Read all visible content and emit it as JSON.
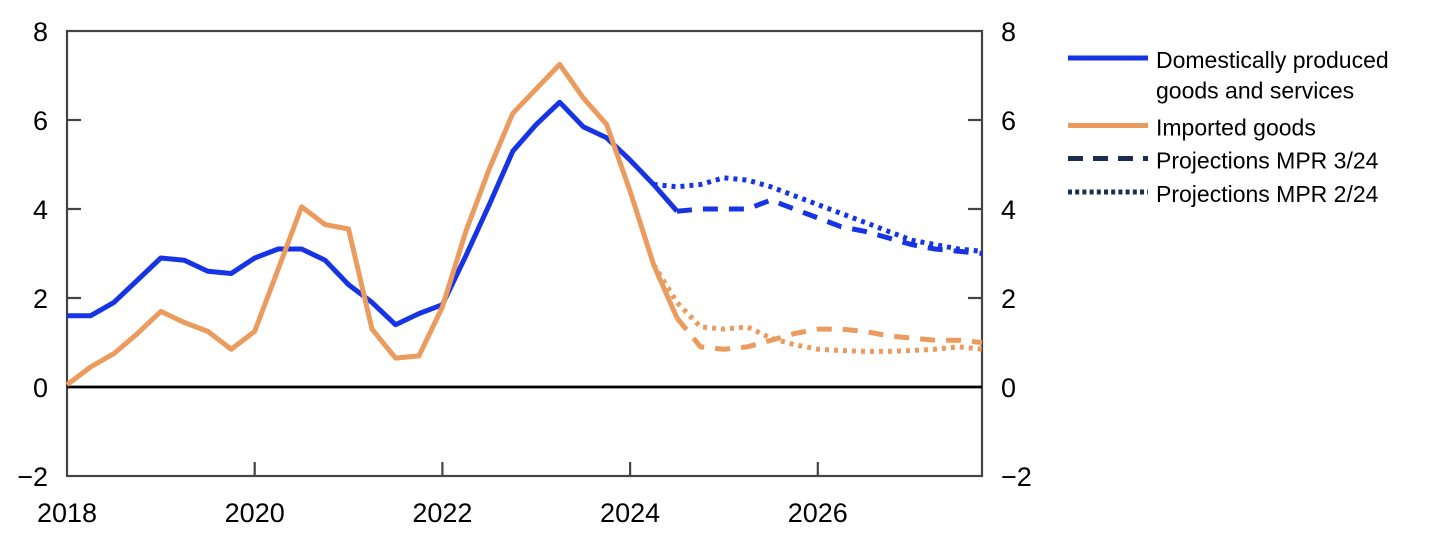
{
  "chart_data": {
    "type": "line",
    "title": "",
    "x_step": 0.25,
    "x_axis": {
      "ticks": [
        2018,
        2020,
        2022,
        2024,
        2026
      ],
      "tick_labels": [
        "2018",
        "2020",
        "2022",
        "2024",
        "2026"
      ],
      "range": [
        2018,
        2027.75
      ]
    },
    "y_axis": {
      "ticks": [
        8,
        6,
        4,
        2,
        0,
        -2
      ],
      "tick_labels": [
        "8",
        "6",
        "4",
        "2",
        "0",
        "−2"
      ],
      "range": [
        -2,
        8
      ],
      "sides": [
        "left",
        "right"
      ]
    },
    "zero_line": true,
    "grid": false,
    "colors": {
      "domestic": "#1634e4",
      "imported": "#eb9b5e",
      "projection_legend": "#1e2b52",
      "axis": "#444444",
      "zero_line": "#000000"
    },
    "series": [
      {
        "id": "domestic",
        "name": "Domestically produced goods and services",
        "style": "solid",
        "color": "#1634e4",
        "x_start": 2018.0,
        "values": [
          1.6,
          1.6,
          1.9,
          2.4,
          2.9,
          2.85,
          2.6,
          2.55,
          2.9,
          3.1,
          3.1,
          2.85,
          2.3,
          1.9,
          1.4,
          1.65,
          1.85,
          2.95,
          4.1,
          5.3,
          5.9,
          6.4,
          5.85,
          5.6,
          5.1,
          4.55,
          3.95
        ]
      },
      {
        "id": "imported",
        "name": "Imported goods",
        "style": "solid",
        "color": "#eb9b5e",
        "x_start": 2018.0,
        "values": [
          0.05,
          0.45,
          0.75,
          1.2,
          1.7,
          1.45,
          1.25,
          0.85,
          1.25,
          2.65,
          4.05,
          3.65,
          3.55,
          1.3,
          0.65,
          0.7,
          1.8,
          3.5,
          4.9,
          6.15,
          6.7,
          7.25,
          6.5,
          5.9,
          4.4,
          2.75,
          1.55
        ]
      },
      {
        "id": "domestic-mpr-3-24",
        "name": "Projections MPR 3/24",
        "of": "Domestically produced goods and services",
        "style": "dashed",
        "color": "#1634e4",
        "x_start": 2024.5,
        "values": [
          3.95,
          4.0,
          4.0,
          4.0,
          4.2,
          4.0,
          3.8,
          3.6,
          3.5,
          3.35,
          3.2,
          3.1,
          3.05,
          3.0
        ]
      },
      {
        "id": "domestic-mpr-2-24",
        "name": "Projections MPR 2/24",
        "of": "Domestically produced goods and services",
        "style": "dotted",
        "color": "#1634e4",
        "x_start": 2024.25,
        "values": [
          4.55,
          4.5,
          4.55,
          4.7,
          4.65,
          4.5,
          4.3,
          4.1,
          3.9,
          3.7,
          3.5,
          3.3,
          3.2,
          3.1,
          3.05
        ]
      },
      {
        "id": "imported-mpr-3-24",
        "name": "Projections MPR 3/24",
        "of": "Imported goods",
        "style": "dashed",
        "color": "#eb9b5e",
        "x_start": 2024.5,
        "values": [
          1.55,
          0.9,
          0.85,
          0.9,
          1.05,
          1.2,
          1.3,
          1.3,
          1.25,
          1.15,
          1.1,
          1.05,
          1.05,
          1.0
        ]
      },
      {
        "id": "imported-mpr-2-24",
        "name": "Projections MPR 2/24",
        "of": "Imported goods",
        "style": "dotted",
        "color": "#eb9b5e",
        "x_start": 2024.25,
        "values": [
          2.75,
          1.9,
          1.35,
          1.3,
          1.35,
          1.1,
          0.95,
          0.85,
          0.82,
          0.8,
          0.8,
          0.82,
          0.85,
          0.9,
          0.85
        ]
      }
    ],
    "legend": {
      "position": "right",
      "entries": [
        {
          "id": "domestic",
          "lines": [
            "Domestically produced",
            "goods and services"
          ],
          "style": "solid",
          "color": "#1634e4"
        },
        {
          "id": "imported",
          "lines": [
            "Imported goods"
          ],
          "style": "solid",
          "color": "#eb9b5e"
        },
        {
          "id": "mpr-3-24",
          "lines": [
            "Projections MPR 3/24"
          ],
          "style": "dashed",
          "color": "#1e2b52"
        },
        {
          "id": "mpr-2-24",
          "lines": [
            "Projections MPR 2/24"
          ],
          "style": "dotted",
          "color": "#1e2b52"
        }
      ]
    }
  }
}
